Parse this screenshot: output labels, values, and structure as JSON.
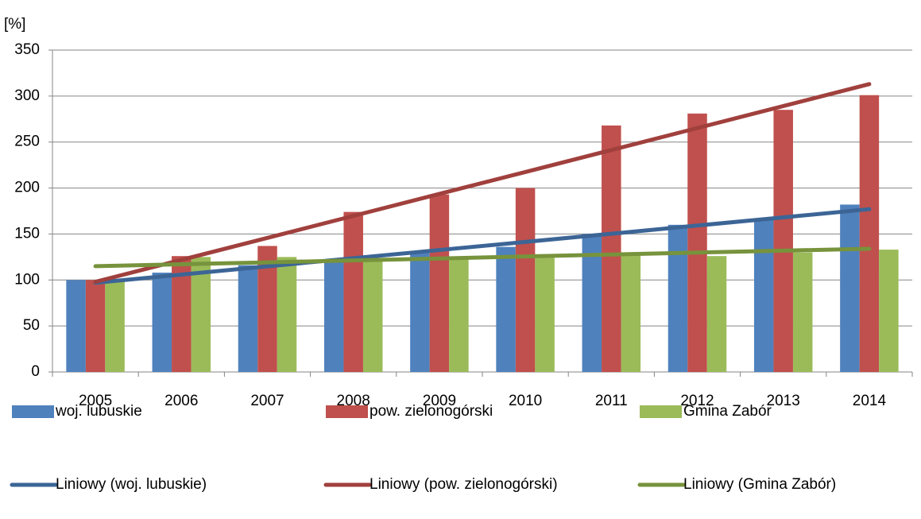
{
  "chart_data": {
    "type": "bar",
    "y_label": "[%]",
    "categories": [
      "2005",
      "2006",
      "2007",
      "2008",
      "2009",
      "2010",
      "2011",
      "2012",
      "2013",
      "2014"
    ],
    "series": [
      {
        "name": "woj. lubuskie",
        "color": "#4f81bd",
        "values": [
          100,
          108,
          116,
          122,
          130,
          136,
          150,
          160,
          166,
          182
        ]
      },
      {
        "name": "pow. zielonogórski",
        "color": "#c0504d",
        "values": [
          100,
          126,
          137,
          174,
          193,
          200,
          268,
          281,
          285,
          301
        ]
      },
      {
        "name": "Gmina Zabór",
        "color": "#9bbb59",
        "values": [
          100,
          125,
          125,
          122,
          123,
          125,
          130,
          126,
          130,
          133
        ]
      },
      {
        "name": "Liniowy (woj. lubuskie)",
        "type": "line",
        "color": "#3c6596",
        "values": [
          97,
          105.9,
          114.8,
          123.7,
          132.6,
          141.4,
          150.3,
          159.2,
          168.1,
          177
        ]
      },
      {
        "name": "Liniowy (pow. zielonogórski)",
        "type": "line",
        "color": "#a0403d",
        "values": [
          98,
          121.9,
          145.8,
          169.7,
          193.6,
          217.4,
          241.3,
          265.2,
          289.1,
          313
        ]
      },
      {
        "name": "Liniowy (Gmina Zabór)",
        "type": "line",
        "color": "#77933c",
        "values": [
          115,
          117.1,
          119.2,
          121.3,
          123.4,
          125.6,
          127.7,
          129.8,
          131.9,
          134
        ]
      }
    ],
    "ylim": [
      0,
      350
    ],
    "yticks": [
      0,
      50,
      100,
      150,
      200,
      250,
      300,
      350
    ],
    "grid": true
  }
}
